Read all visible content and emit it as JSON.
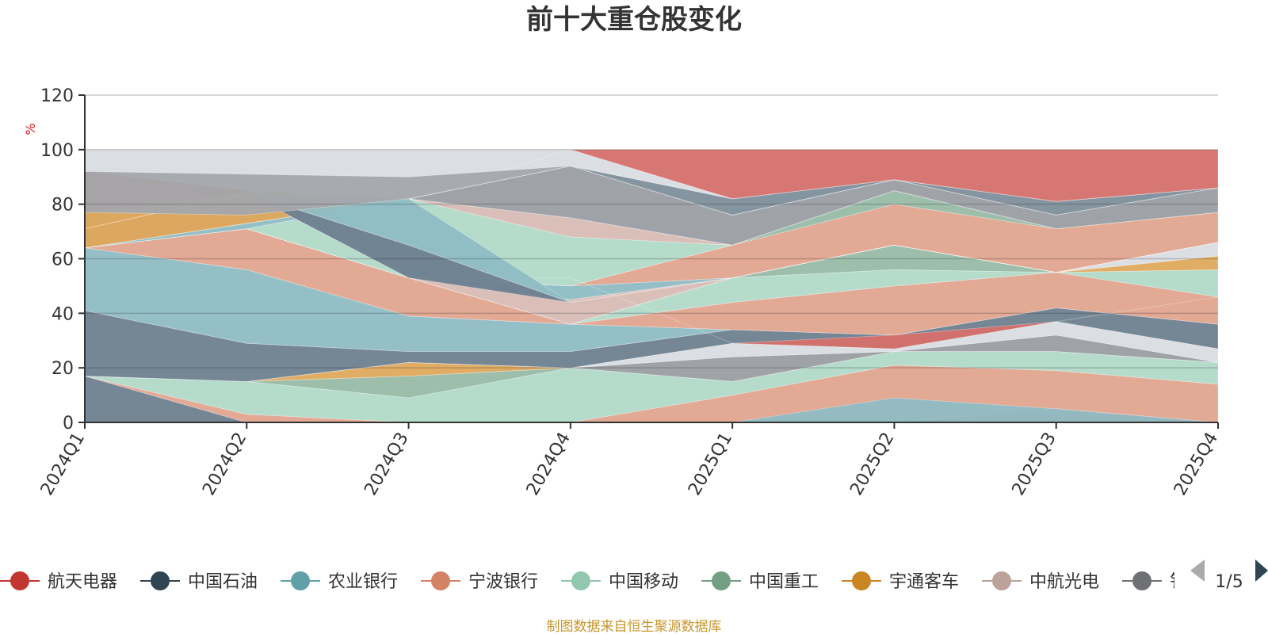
{
  "chart_data": {
    "type": "area",
    "title": "前十大重仓股变化",
    "ylabel": "%",
    "ylim": [
      0,
      120
    ],
    "yticks": [
      0,
      20,
      40,
      60,
      80,
      100,
      120
    ],
    "categories": [
      "2024Q1",
      "2024Q2",
      "2024Q3",
      "2024Q4",
      "2025Q1",
      "2025Q2",
      "2025Q3",
      "2025Q4"
    ],
    "series": [
      {
        "name": "band-1",
        "color": "#6e7f8f",
        "lower": [
          0,
          0,
          0,
          0,
          0,
          0,
          0,
          0
        ],
        "upper": [
          17,
          0,
          0,
          0,
          0,
          0,
          0,
          0
        ]
      },
      {
        "name": "band-2",
        "color": "#e0a48e",
        "lower": [
          17,
          0,
          0,
          0,
          0,
          0,
          0,
          0
        ],
        "upper": [
          17,
          3,
          0,
          0,
          10,
          21,
          19,
          14
        ]
      },
      {
        "name": "band-3",
        "color": "#b1d9c8",
        "lower": [
          17,
          3,
          0,
          0,
          10,
          21,
          19,
          14
        ],
        "upper": [
          17,
          15,
          9,
          20,
          15,
          26,
          26,
          22
        ]
      },
      {
        "name": "band-4",
        "color": "#98bba6",
        "lower": [
          17,
          15,
          9,
          20,
          15,
          26,
          26,
          22
        ],
        "upper": [
          17,
          15,
          17,
          20,
          15,
          26,
          26,
          22
        ]
      },
      {
        "name": "band-5",
        "color": "#dfa95c",
        "lower": [
          17,
          15,
          17,
          20,
          15,
          26,
          26,
          22
        ],
        "upper": [
          17,
          15,
          22,
          20,
          15,
          26,
          26,
          22
        ]
      },
      {
        "name": "band-6",
        "color": "#9a9ea3",
        "lower": [
          17,
          15,
          22,
          20,
          15,
          26,
          26,
          22
        ],
        "upper": [
          17,
          15,
          22,
          20,
          24,
          26,
          32,
          22
        ]
      },
      {
        "name": "band-7",
        "color": "#d9dde3",
        "lower": [
          17,
          15,
          22,
          20,
          24,
          26,
          32,
          22
        ],
        "upper": [
          17,
          15,
          22,
          20,
          29,
          27,
          37,
          27
        ]
      },
      {
        "name": "band-8",
        "color": "#6e7f8f",
        "lower": [
          17,
          15,
          22,
          20,
          29,
          27,
          37,
          27
        ],
        "upper": [
          41,
          29,
          26,
          26,
          34,
          32,
          42,
          36
        ]
      },
      {
        "name": "band-9",
        "color": "#8fbcc4",
        "lower": [
          41,
          29,
          26,
          26,
          34,
          32,
          42,
          36
        ],
        "upper": [
          64,
          56,
          39,
          36,
          34,
          32,
          42,
          36
        ]
      },
      {
        "name": "band-10",
        "color": "#e0a48e",
        "lower": [
          64,
          56,
          39,
          36,
          34,
          32,
          42,
          36
        ],
        "upper": [
          64,
          71,
          53,
          36,
          44,
          50,
          55,
          46
        ]
      },
      {
        "name": "band-11",
        "color": "#b1d9c8",
        "lower": [
          64,
          71,
          53,
          36,
          44,
          50,
          55,
          46
        ],
        "upper": [
          64,
          71,
          53,
          36,
          53,
          56,
          55,
          56
        ]
      },
      {
        "name": "band-12",
        "color": "#98bba6",
        "lower": [
          64,
          71,
          53,
          36,
          53,
          56,
          55,
          56
        ],
        "upper": [
          64,
          71,
          53,
          36,
          53,
          65,
          55,
          56
        ]
      },
      {
        "name": "band-13",
        "color": "#dfa95c",
        "lower": [
          64,
          71,
          53,
          36,
          53,
          65,
          55,
          56
        ],
        "upper": [
          64,
          71,
          53,
          36,
          53,
          65,
          55,
          61
        ]
      },
      {
        "name": "band-14",
        "color": "#d9dde3",
        "lower": [
          64,
          71,
          53,
          36,
          53,
          65,
          55,
          61
        ],
        "upper": [
          64,
          71,
          53,
          36,
          53,
          65,
          55,
          66
        ]
      },
      {
        "name": "band-15",
        "color": "#d8bcb5",
        "lower": [
          64,
          71,
          53,
          36,
          53,
          65,
          55,
          66
        ],
        "upper": [
          64,
          71,
          53,
          45,
          53,
          65,
          55,
          66
        ]
      },
      {
        "name": "band-16",
        "color": "#8fbcc4",
        "lower": [
          64,
          71,
          53,
          45,
          53,
          65,
          55,
          66
        ],
        "upper": [
          64,
          71,
          53,
          50,
          53,
          65,
          55,
          66
        ]
      },
      {
        "name": "band-17",
        "color": "#e0a48e",
        "lower": [
          64,
          71,
          53,
          50,
          53,
          65,
          55,
          66
        ],
        "upper": [
          64,
          71,
          53,
          50,
          65,
          80,
          71,
          77
        ]
      },
      {
        "name": "band-18",
        "color": "#98bba6",
        "lower": [
          64,
          71,
          53,
          50,
          65,
          80,
          71,
          77
        ],
        "upper": [
          64,
          71,
          53,
          50,
          65,
          85,
          71,
          77
        ]
      },
      {
        "name": "band-19",
        "color": "#b1d9c8",
        "lower": [
          64,
          71,
          53,
          50,
          65,
          85,
          71,
          77
        ],
        "upper": [
          64,
          71,
          82,
          68,
          65,
          85,
          71,
          77
        ]
      },
      {
        "name": "band-20",
        "color": "#d8bcb5",
        "lower": [
          64,
          71,
          82,
          68,
          65,
          85,
          71,
          77
        ],
        "upper": [
          64,
          71,
          82,
          75,
          65,
          85,
          71,
          77
        ]
      },
      {
        "name": "band-21",
        "color": "#8fbcc4",
        "lower": [
          64,
          71,
          82,
          75,
          65,
          85,
          71,
          77
        ],
        "upper": [
          64,
          73,
          82,
          75,
          65,
          85,
          71,
          77
        ]
      },
      {
        "name": "band-22",
        "color": "#9a9ea3",
        "lower": [
          64,
          73,
          82,
          75,
          65,
          85,
          71,
          77
        ],
        "upper": [
          77,
          76,
          82,
          94,
          76,
          89,
          76,
          86
        ]
      },
      {
        "name": "band-23",
        "color": "#7d8e9b",
        "lower": [
          64,
          73,
          82,
          94,
          76,
          89,
          76,
          86
        ],
        "upper": [
          64,
          73,
          82,
          94,
          82,
          89,
          81,
          86
        ]
      },
      {
        "name": "band-24",
        "color": "#dfa95c",
        "lower": [
          64,
          73,
          82,
          94,
          82,
          89,
          81,
          86
        ],
        "upper": [
          92,
          85,
          82,
          94,
          82,
          89,
          81,
          86
        ]
      },
      {
        "name": "band-25",
        "color": "#d9dde3",
        "lower": [
          92,
          85,
          82,
          94,
          82,
          89,
          81,
          86
        ],
        "upper": [
          100,
          100,
          100,
          100,
          82,
          89,
          81,
          86
        ]
      },
      {
        "name": "band-26",
        "color": "#d5706b",
        "lower": [
          92,
          85,
          82,
          100,
          82,
          89,
          81,
          86
        ],
        "upper": [
          92,
          85,
          82,
          100,
          100,
          100,
          100,
          100
        ]
      },
      {
        "name": "overlay-red",
        "color": "#d5706b",
        "lower": [
          77,
          84,
          53,
          53,
          29,
          27,
          37,
          46
        ],
        "upper": [
          92,
          85,
          53,
          53,
          29,
          32,
          37,
          46
        ]
      },
      {
        "name": "overlay-dark",
        "color": "#6e7f8f",
        "lower": [
          71,
          84,
          53,
          44,
          53,
          65,
          55,
          66
        ],
        "upper": [
          71,
          84,
          65,
          44,
          53,
          65,
          55,
          66
        ]
      },
      {
        "name": "overlay-mid",
        "color": "#8fbcc4",
        "lower": [
          71,
          84,
          65,
          44,
          53,
          65,
          55,
          66
        ],
        "upper": [
          71,
          84,
          82,
          44,
          53,
          65,
          55,
          66
        ]
      },
      {
        "name": "overlay-top",
        "color": "#a4a7ab",
        "lower": [
          77,
          76,
          82,
          94,
          76,
          89,
          76,
          86
        ],
        "upper": [
          92,
          91,
          90,
          94,
          76,
          89,
          76,
          86
        ]
      },
      {
        "name": "overlay-bottom",
        "color": "#d5706b",
        "lower": [
          0,
          0,
          0,
          0,
          0,
          0,
          0,
          0
        ],
        "upper": [
          0,
          0,
          0,
          0,
          0,
          0,
          5,
          0
        ]
      },
      {
        "name": "overlay-teal",
        "color": "#8fbcc4",
        "lower": [
          0,
          0,
          0,
          0,
          0,
          0,
          0,
          0
        ],
        "upper": [
          0,
          0,
          0,
          0,
          0,
          9,
          5,
          0
        ]
      }
    ],
    "legend": {
      "items": [
        {
          "label": "航天电器",
          "color": "#c23531"
        },
        {
          "label": "中国石油",
          "color": "#2f4554"
        },
        {
          "label": "农业银行",
          "color": "#61a0a8"
        },
        {
          "label": "宁波银行",
          "color": "#d48265"
        },
        {
          "label": "中国移动",
          "color": "#91c7ae"
        },
        {
          "label": "中国重工",
          "color": "#749f83"
        },
        {
          "label": "宇通客车",
          "color": "#ca8622"
        },
        {
          "label": "中航光电",
          "color": "#bda29a"
        },
        {
          "label": "钅",
          "color": "#6e7074"
        }
      ],
      "page": "1/5",
      "position": "bottom"
    }
  },
  "source_note": "制图数据来自恒生聚源数据库"
}
